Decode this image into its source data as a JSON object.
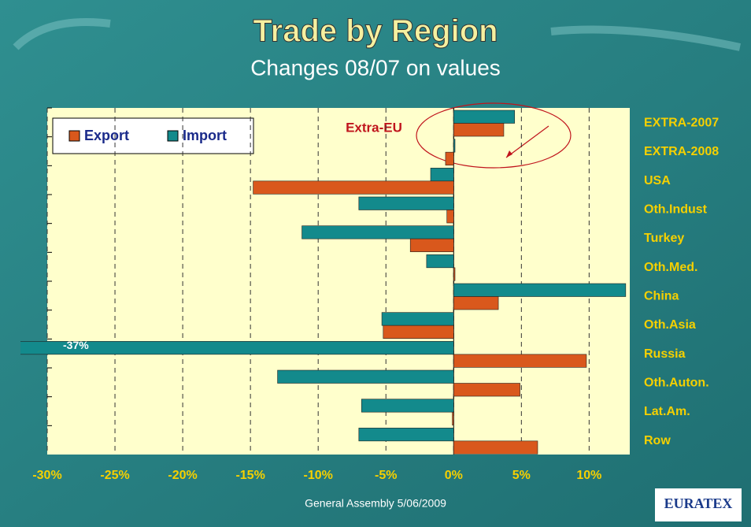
{
  "chart_data": {
    "type": "bar",
    "orientation": "horizontal",
    "title": "Trade by Region",
    "subtitle": "Changes 08/07 on values",
    "categories": [
      "EXTRA-2007",
      "EXTRA-2008",
      "USA",
      "Oth.Indust",
      "Turkey",
      "Oth.Med.",
      "China",
      "Oth.Asia",
      "Russia",
      "Oth.Auton.",
      "Lat.Am.",
      "Row"
    ],
    "series": [
      {
        "name": "Import",
        "color": "#138a8c",
        "values": [
          4.5,
          0.1,
          -1.7,
          -7.0,
          -11.2,
          -2.0,
          12.7,
          -5.3,
          -37,
          -13.0,
          -6.8,
          -7.0
        ],
        "value_labels": [
          null,
          null,
          null,
          null,
          null,
          null,
          null,
          null,
          "-37%",
          null,
          null,
          null
        ]
      },
      {
        "name": "Export",
        "color": "#d9581c",
        "values": [
          3.7,
          -0.6,
          -14.8,
          -0.5,
          -3.2,
          0.1,
          3.3,
          -5.2,
          9.8,
          4.9,
          -0.1,
          6.2
        ]
      }
    ],
    "legend_order": [
      1,
      0
    ],
    "xlim": [
      -30,
      13
    ],
    "xticks": [
      {
        "value": -30,
        "label": "-30%"
      },
      {
        "value": -25,
        "label": "-25%"
      },
      {
        "value": -20,
        "label": "-20%"
      },
      {
        "value": -15,
        "label": "-15%"
      },
      {
        "value": -10,
        "label": "-10%"
      },
      {
        "value": -5,
        "label": "-5%"
      },
      {
        "value": 0,
        "label": "0%"
      },
      {
        "value": 5,
        "label": "5%"
      },
      {
        "value": 10,
        "label": "10%"
      }
    ],
    "grid": true,
    "annotation": "Extra-EU"
  },
  "footer": "General Assembly 5/06/2009",
  "logo": "EURATEX"
}
